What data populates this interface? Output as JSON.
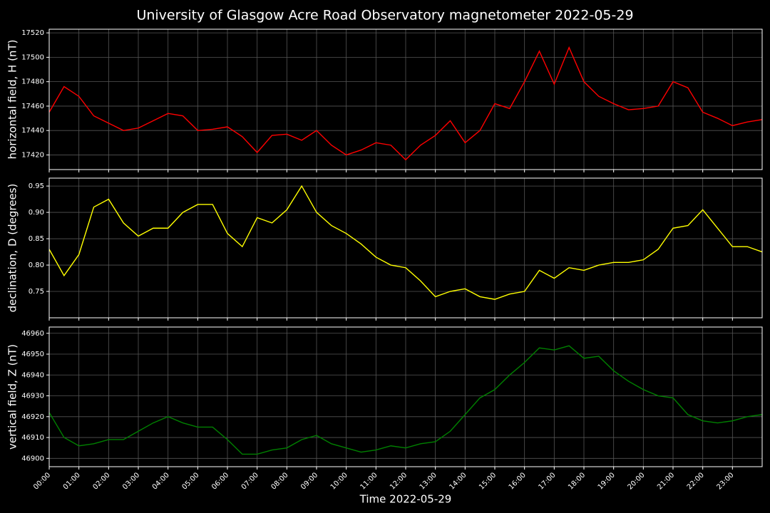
{
  "chart_data": [
    {
      "type": "line",
      "title": "University of Glasgow Acre Road Observatory magnetometer 2022-05-29",
      "ylabel": "horizontal field, H (nT)",
      "color": "#ff0000",
      "grid": true,
      "x": [
        0,
        0.5,
        1,
        1.5,
        2,
        2.5,
        3,
        3.5,
        4,
        4.5,
        5,
        5.5,
        6,
        6.5,
        7,
        7.5,
        8,
        8.5,
        9,
        9.5,
        10,
        10.5,
        11,
        11.5,
        12,
        12.5,
        13,
        13.5,
        14,
        14.5,
        15,
        15.5,
        16,
        16.5,
        17,
        17.5,
        18,
        18.5,
        19,
        19.5,
        20,
        20.5,
        21,
        21.5,
        22,
        22.5,
        23,
        23.5,
        24
      ],
      "values": [
        17455,
        17476,
        17468,
        17452,
        17446,
        17440,
        17442,
        17448,
        17454,
        17452,
        17440,
        17441,
        17443,
        17435,
        17422,
        17436,
        17437,
        17432,
        17440,
        17428,
        17420,
        17424,
        17430,
        17428,
        17416,
        17428,
        17436,
        17448,
        17430,
        17440,
        17462,
        17458,
        17480,
        17505,
        17478,
        17508,
        17480,
        17468,
        17462,
        17457,
        17458,
        17460,
        17480,
        17475,
        17455,
        17450,
        17444,
        17447,
        17449
      ],
      "xlim": [
        0,
        24
      ],
      "xticks": [
        0,
        1,
        2,
        3,
        4,
        5,
        6,
        7,
        8,
        9,
        10,
        11,
        12,
        13,
        14,
        15,
        16,
        17,
        18,
        19,
        20,
        21,
        22,
        23
      ],
      "ylim": [
        17408,
        17523
      ],
      "yticks": [
        17420,
        17440,
        17460,
        17480,
        17500,
        17520
      ]
    },
    {
      "type": "line",
      "ylabel": "declination, D (degrees)",
      "color": "#ffff00",
      "grid": true,
      "x": [
        0,
        0.5,
        1,
        1.5,
        2,
        2.5,
        3,
        3.5,
        4,
        4.5,
        5,
        5.5,
        6,
        6.5,
        7,
        7.5,
        8,
        8.5,
        9,
        9.5,
        10,
        10.5,
        11,
        11.5,
        12,
        12.5,
        13,
        13.5,
        14,
        14.5,
        15,
        15.5,
        16,
        16.5,
        17,
        17.5,
        18,
        18.5,
        19,
        19.5,
        20,
        20.5,
        21,
        21.5,
        22,
        22.5,
        23,
        23.5,
        24
      ],
      "values": [
        0.83,
        0.78,
        0.82,
        0.91,
        0.925,
        0.88,
        0.855,
        0.87,
        0.87,
        0.9,
        0.915,
        0.915,
        0.86,
        0.835,
        0.89,
        0.88,
        0.905,
        0.95,
        0.9,
        0.875,
        0.86,
        0.84,
        0.815,
        0.8,
        0.795,
        0.77,
        0.74,
        0.75,
        0.755,
        0.74,
        0.735,
        0.745,
        0.75,
        0.79,
        0.775,
        0.795,
        0.79,
        0.8,
        0.805,
        0.805,
        0.81,
        0.83,
        0.87,
        0.875,
        0.905,
        0.87,
        0.835,
        0.835,
        0.825
      ],
      "xlim": [
        0,
        24
      ],
      "xticks": [
        0,
        1,
        2,
        3,
        4,
        5,
        6,
        7,
        8,
        9,
        10,
        11,
        12,
        13,
        14,
        15,
        16,
        17,
        18,
        19,
        20,
        21,
        22,
        23
      ],
      "ylim": [
        0.7,
        0.965
      ],
      "yticks": [
        {
          "value": 0.75,
          "label": "0.75"
        },
        {
          "value": 0.8,
          "label": "0.80"
        },
        {
          "value": 0.85,
          "label": "0.85"
        },
        {
          "value": 0.9,
          "label": "0.90"
        },
        {
          "value": 0.95,
          "label": "0.95"
        }
      ]
    },
    {
      "type": "line",
      "ylabel": "vertical field, Z (nT)",
      "xlabel": "Time 2022-05-29",
      "color": "#008000",
      "grid": true,
      "x": [
        0,
        0.5,
        1,
        1.5,
        2,
        2.5,
        3,
        3.5,
        4,
        4.5,
        5,
        5.5,
        6,
        6.5,
        7,
        7.5,
        8,
        8.5,
        9,
        9.5,
        10,
        10.5,
        11,
        11.5,
        12,
        12.5,
        13,
        13.5,
        14,
        14.5,
        15,
        15.5,
        16,
        16.5,
        17,
        17.5,
        18,
        18.5,
        19,
        19.5,
        20,
        20.5,
        21,
        21.5,
        22,
        22.5,
        23,
        23.5,
        24
      ],
      "values": [
        46922,
        46910,
        46906,
        46907,
        46909,
        46909,
        46913,
        46917,
        46920,
        46917,
        46915,
        46915,
        46909,
        46902,
        46902,
        46904,
        46905,
        46909,
        46911,
        46907,
        46905,
        46903,
        46904,
        46906,
        46905,
        46907,
        46908,
        46913,
        46921,
        46929,
        46933,
        46940,
        46946,
        46953,
        46952,
        46954,
        46948,
        46949,
        46942,
        46937,
        46933,
        46930,
        46929,
        46921,
        46918,
        46917,
        46918,
        46920,
        46921
      ],
      "xlim": [
        0,
        24
      ],
      "xticks": [
        {
          "value": 0,
          "label": "00:00"
        },
        {
          "value": 1,
          "label": "01:00"
        },
        {
          "value": 2,
          "label": "02:00"
        },
        {
          "value": 3,
          "label": "03:00"
        },
        {
          "value": 4,
          "label": "04:00"
        },
        {
          "value": 5,
          "label": "05:00"
        },
        {
          "value": 6,
          "label": "06:00"
        },
        {
          "value": 7,
          "label": "07:00"
        },
        {
          "value": 8,
          "label": "08:00"
        },
        {
          "value": 9,
          "label": "09:00"
        },
        {
          "value": 10,
          "label": "10:00"
        },
        {
          "value": 11,
          "label": "11:00"
        },
        {
          "value": 12,
          "label": "12:00"
        },
        {
          "value": 13,
          "label": "13:00"
        },
        {
          "value": 14,
          "label": "14:00"
        },
        {
          "value": 15,
          "label": "15:00"
        },
        {
          "value": 16,
          "label": "16:00"
        },
        {
          "value": 17,
          "label": "17:00"
        },
        {
          "value": 18,
          "label": "18:00"
        },
        {
          "value": 19,
          "label": "19:00"
        },
        {
          "value": 20,
          "label": "20:00"
        },
        {
          "value": 21,
          "label": "21:00"
        },
        {
          "value": 22,
          "label": "22:00"
        },
        {
          "value": 23,
          "label": "23:00"
        }
      ],
      "ylim": [
        46896,
        46963
      ],
      "yticks": [
        46900,
        46910,
        46920,
        46930,
        46940,
        46950,
        46960
      ]
    }
  ]
}
